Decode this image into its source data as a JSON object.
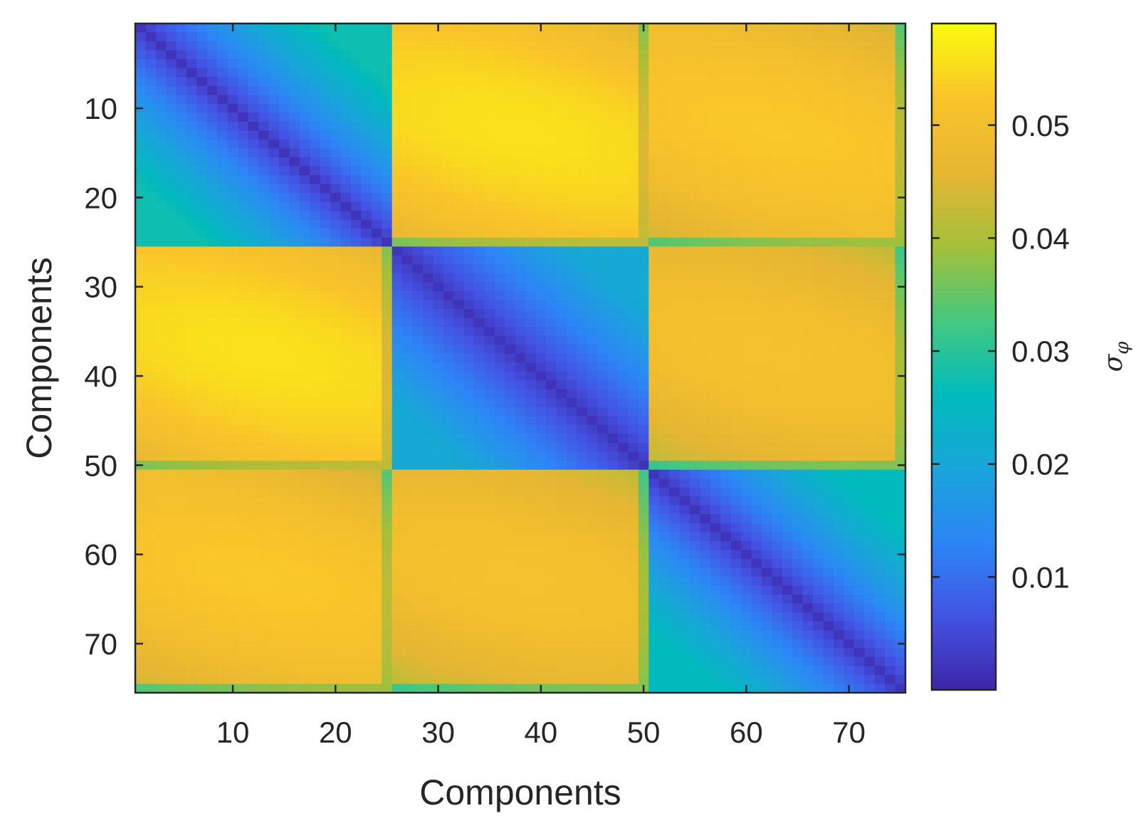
{
  "chart_data": {
    "type": "heatmap",
    "title": "",
    "xlabel": "Components",
    "ylabel": "Components",
    "n": 75,
    "xlim": [
      0.5,
      75.5
    ],
    "ylim": [
      0.5,
      75.5
    ],
    "y_direction": "reversed",
    "xticks": [
      10,
      20,
      30,
      40,
      50,
      60,
      70
    ],
    "xtick_labels": [
      "10",
      "20",
      "30",
      "40",
      "50",
      "60",
      "70"
    ],
    "yticks": [
      10,
      20,
      30,
      40,
      50,
      60,
      70
    ],
    "ytick_labels": [
      "10",
      "20",
      "30",
      "40",
      "50",
      "60",
      "70"
    ],
    "block_boundaries": [
      25,
      50
    ],
    "colormap": "parula",
    "colormap_stops": [
      "#3e26a8",
      "#4353e3",
      "#2d86f6",
      "#19a5d9",
      "#00bbbc",
      "#46c87f",
      "#a4bf3a",
      "#e6b633",
      "#f9c42a",
      "#f9fb0e"
    ],
    "clim": [
      0.0,
      0.059
    ],
    "colorbar": {
      "label": "σ_φ",
      "label_main": "σ",
      "label_sub": "φ",
      "ticks": [
        0.01,
        0.02,
        0.03,
        0.04,
        0.05
      ],
      "tick_labels": [
        "0.01",
        "0.02",
        "0.03",
        "0.04",
        "0.05"
      ],
      "placement": "right"
    },
    "block_means": [
      [
        0.016,
        0.052,
        0.049
      ],
      [
        0.052,
        0.012,
        0.047
      ],
      [
        0.049,
        0.047,
        0.015
      ]
    ],
    "diagonal_value": 0.002,
    "grid": false
  }
}
